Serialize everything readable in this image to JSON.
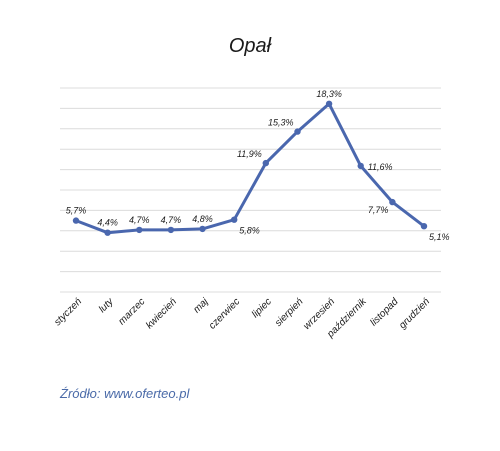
{
  "chart_data": {
    "type": "line",
    "title": "Opał",
    "categories": [
      "styczeń",
      "luty",
      "marzec",
      "kwiecień",
      "maj",
      "czerwiec",
      "lipiec",
      "sierpień",
      "wrzesień",
      "październik",
      "listopad",
      "grudzień"
    ],
    "series": [
      {
        "values": [
          5.7,
          4.4,
          4.7,
          4.7,
          4.8,
          5.8,
          11.9,
          15.3,
          18.3,
          11.6,
          7.7,
          5.1
        ],
        "labels": [
          "5,7%",
          "4,4%",
          "4,7%",
          "4,7%",
          "4,8%",
          "5,8%",
          "11,9%",
          "15,3%",
          "18,3%",
          "11,6%",
          "7,7%",
          "5,1%"
        ]
      }
    ],
    "ylim": [
      -2,
      20
    ],
    "grid": true,
    "line_color": "#4a67ae"
  },
  "source": "Źródło: www.oferteo.pl"
}
